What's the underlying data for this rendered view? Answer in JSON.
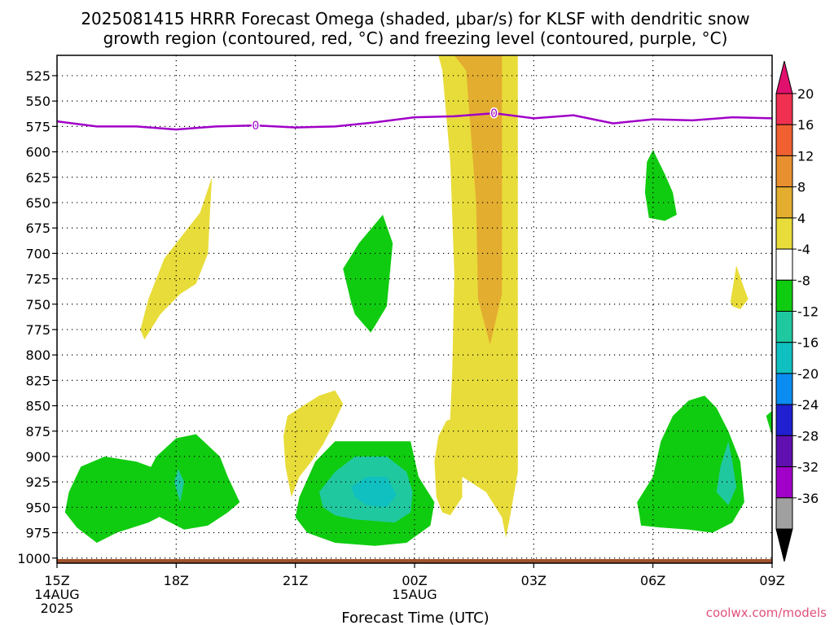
{
  "title_lines": [
    "2025081415 HRRR Forecast Omega (shaded, μbar/s) for KLSF with dendritic snow",
    "growth region (contoured, red, °C) and freezing level (contoured, purple, °C)"
  ],
  "watermark": "coolwx.com/models",
  "colors": {
    "yellow": "#e8dc3a",
    "light_orange": "#e3ad30",
    "green": "#10cc10",
    "teal": "#20c8a0",
    "cyan": "#10c0c0",
    "freezing_line": "#a000c8",
    "ground": "#a0522d"
  },
  "chart_data": {
    "type": "heatmap",
    "xlabel": "Forecast Time (UTC)",
    "ylabel": "",
    "x_range_hours": [
      0,
      18
    ],
    "y_range_hpa": [
      1005,
      505
    ],
    "y_ticks": [
      525,
      550,
      575,
      600,
      625,
      650,
      675,
      700,
      725,
      750,
      775,
      800,
      825,
      850,
      875,
      900,
      925,
      950,
      975,
      1000
    ],
    "x_ticks": [
      {
        "h": 0,
        "lines": [
          "15Z",
          "14AUG",
          "2025"
        ]
      },
      {
        "h": 3,
        "lines": [
          "18Z"
        ]
      },
      {
        "h": 6,
        "lines": [
          "21Z"
        ]
      },
      {
        "h": 9,
        "lines": [
          "00Z",
          "15AUG"
        ]
      },
      {
        "h": 12,
        "lines": [
          "03Z"
        ]
      },
      {
        "h": 15,
        "lines": [
          "06Z"
        ]
      },
      {
        "h": 18,
        "lines": [
          "09Z"
        ]
      }
    ],
    "colorbar": {
      "colors": [
        "#a0a0a0",
        "#a000c8",
        "#6010b0",
        "#2020d0",
        "#0a8cf0",
        "#10c0c0",
        "#20c8a0",
        "#10cc10",
        "#ffffff",
        "#e8dc3a",
        "#e3ad30",
        "#e89030",
        "#f06030",
        "#f03050"
      ],
      "top_color": "#e0106e",
      "bottom_color": "#000000",
      "labels": [
        "20",
        "16",
        "12",
        "8",
        "4",
        "-4",
        "-8",
        "-12",
        "-16",
        "-20",
        "-24",
        "-28",
        "-32",
        "-36"
      ]
    },
    "freezing_level": {
      "label": "0",
      "label_points": [
        [
          5,
          574
        ],
        [
          11,
          562
        ]
      ],
      "points": [
        [
          0,
          570
        ],
        [
          1,
          575
        ],
        [
          2,
          575
        ],
        [
          3,
          578
        ],
        [
          4,
          575
        ],
        [
          5,
          574
        ],
        [
          6,
          576
        ],
        [
          7,
          575
        ],
        [
          8,
          571
        ],
        [
          9,
          566
        ],
        [
          10,
          565
        ],
        [
          11,
          562
        ],
        [
          12,
          567
        ],
        [
          13,
          564
        ],
        [
          14,
          572
        ],
        [
          15,
          568
        ],
        [
          16,
          569
        ],
        [
          17,
          566
        ],
        [
          18,
          567
        ]
      ]
    },
    "ground_level_hpa": 1003,
    "regions": [
      {
        "level": "yellow",
        "points": [
          [
            9.6,
            505
          ],
          [
            11.6,
            505
          ],
          [
            11.6,
            915
          ],
          [
            11.4,
            960
          ],
          [
            11.3,
            980
          ],
          [
            11.2,
            960
          ],
          [
            10.8,
            935
          ],
          [
            10.2,
            920
          ],
          [
            9.9,
            905
          ],
          [
            9.9,
            860
          ],
          [
            9.95,
            815
          ],
          [
            10.0,
            720
          ],
          [
            9.9,
            610
          ],
          [
            9.7,
            520
          ]
        ]
      },
      {
        "level": "light_orange",
        "points": [
          [
            10.0,
            505
          ],
          [
            11.2,
            505
          ],
          [
            11.2,
            740
          ],
          [
            10.9,
            790
          ],
          [
            10.6,
            745
          ],
          [
            10.55,
            650
          ],
          [
            10.3,
            520
          ]
        ]
      },
      {
        "level": "yellow",
        "points": [
          [
            9.5,
            905
          ],
          [
            9.6,
            880
          ],
          [
            9.8,
            865
          ],
          [
            10.1,
            860
          ],
          [
            10.2,
            900
          ],
          [
            10.2,
            940
          ],
          [
            9.9,
            958
          ],
          [
            9.7,
            955
          ],
          [
            9.55,
            940
          ]
        ]
      },
      {
        "level": "yellow",
        "points": [
          [
            3.9,
            625
          ],
          [
            3.6,
            660
          ],
          [
            2.7,
            705
          ],
          [
            2.3,
            745
          ],
          [
            2.1,
            775
          ],
          [
            2.2,
            785
          ],
          [
            2.6,
            760
          ],
          [
            3.1,
            740
          ],
          [
            3.5,
            730
          ],
          [
            3.8,
            700
          ],
          [
            3.85,
            660
          ]
        ]
      },
      {
        "level": "yellow",
        "points": [
          [
            5.8,
            860
          ],
          [
            6.6,
            840
          ],
          [
            7.0,
            835
          ],
          [
            7.2,
            848
          ],
          [
            7.0,
            865
          ],
          [
            6.7,
            888
          ],
          [
            6.4,
            905
          ],
          [
            6.1,
            920
          ],
          [
            5.9,
            940
          ],
          [
            5.75,
            910
          ],
          [
            5.7,
            880
          ]
        ]
      },
      {
        "level": "yellow",
        "points": [
          [
            17.1,
            712
          ],
          [
            17.3,
            735
          ],
          [
            17.4,
            745
          ],
          [
            17.2,
            755
          ],
          [
            17.0,
            752
          ],
          [
            16.95,
            748
          ]
        ]
      },
      {
        "level": "green",
        "points": [
          [
            8.2,
            662
          ],
          [
            7.6,
            690
          ],
          [
            7.2,
            715
          ],
          [
            7.4,
            748
          ],
          [
            7.5,
            760
          ],
          [
            7.9,
            778
          ],
          [
            8.3,
            752
          ],
          [
            8.45,
            690
          ]
        ]
      },
      {
        "level": "green",
        "points": [
          [
            15.0,
            598
          ],
          [
            15.3,
            622
          ],
          [
            15.5,
            640
          ],
          [
            15.6,
            662
          ],
          [
            15.3,
            668
          ],
          [
            14.9,
            665
          ],
          [
            14.8,
            640
          ],
          [
            14.85,
            610
          ]
        ]
      },
      {
        "level": "green",
        "points": [
          [
            18.0,
            855
          ],
          [
            18.0,
            880
          ],
          [
            17.85,
            860
          ]
        ]
      },
      {
        "level": "green",
        "points": [
          [
            0.3,
            935
          ],
          [
            0.6,
            910
          ],
          [
            1.2,
            900
          ],
          [
            2.0,
            905
          ],
          [
            2.7,
            915
          ],
          [
            3.3,
            945
          ],
          [
            2.3,
            965
          ],
          [
            1.5,
            975
          ],
          [
            1.0,
            985
          ],
          [
            0.5,
            970
          ],
          [
            0.2,
            955
          ]
        ]
      },
      {
        "level": "green",
        "points": [
          [
            2.5,
            900
          ],
          [
            3.0,
            882
          ],
          [
            3.5,
            878
          ],
          [
            4.1,
            900
          ],
          [
            4.3,
            920
          ],
          [
            4.6,
            945
          ],
          [
            4.3,
            955
          ],
          [
            3.8,
            968
          ],
          [
            3.2,
            972
          ],
          [
            2.6,
            960
          ],
          [
            2.2,
            945
          ],
          [
            2.3,
            915
          ]
        ]
      },
      {
        "level": "green",
        "points": [
          [
            6.1,
            940
          ],
          [
            6.5,
            905
          ],
          [
            7.0,
            885
          ],
          [
            8.9,
            885
          ],
          [
            9.1,
            920
          ],
          [
            9.5,
            945
          ],
          [
            9.4,
            968
          ],
          [
            8.8,
            985
          ],
          [
            8.0,
            988
          ],
          [
            7.0,
            985
          ],
          [
            6.3,
            975
          ],
          [
            6.0,
            960
          ]
        ]
      },
      {
        "level": "green",
        "points": [
          [
            14.6,
            945
          ],
          [
            15.0,
            920
          ],
          [
            15.2,
            885
          ],
          [
            15.5,
            860
          ],
          [
            15.9,
            845
          ],
          [
            16.3,
            840
          ],
          [
            16.6,
            852
          ],
          [
            16.9,
            875
          ],
          [
            17.2,
            905
          ],
          [
            17.3,
            945
          ],
          [
            17.0,
            965
          ],
          [
            16.5,
            975
          ],
          [
            15.9,
            972
          ],
          [
            15.2,
            970
          ],
          [
            14.7,
            968
          ],
          [
            14.65,
            955
          ]
        ]
      },
      {
        "level": "teal",
        "points": [
          [
            6.6,
            935
          ],
          [
            7.0,
            915
          ],
          [
            7.5,
            900
          ],
          [
            8.3,
            900
          ],
          [
            8.8,
            915
          ],
          [
            8.95,
            935
          ],
          [
            8.9,
            955
          ],
          [
            8.5,
            965
          ],
          [
            7.5,
            962
          ],
          [
            7.0,
            958
          ],
          [
            6.7,
            950
          ]
        ]
      },
      {
        "level": "cyan",
        "points": [
          [
            7.4,
            930
          ],
          [
            7.8,
            920
          ],
          [
            8.3,
            920
          ],
          [
            8.55,
            938
          ],
          [
            8.3,
            950
          ],
          [
            7.8,
            948
          ],
          [
            7.5,
            940
          ]
        ]
      },
      {
        "level": "teal",
        "points": [
          [
            3.05,
            912
          ],
          [
            3.2,
            925
          ],
          [
            3.1,
            945
          ],
          [
            2.95,
            925
          ]
        ]
      },
      {
        "level": "teal",
        "points": [
          [
            16.9,
            885
          ],
          [
            17.0,
            905
          ],
          [
            17.1,
            930
          ],
          [
            16.9,
            948
          ],
          [
            16.6,
            935
          ],
          [
            16.7,
            910
          ]
        ]
      }
    ]
  }
}
